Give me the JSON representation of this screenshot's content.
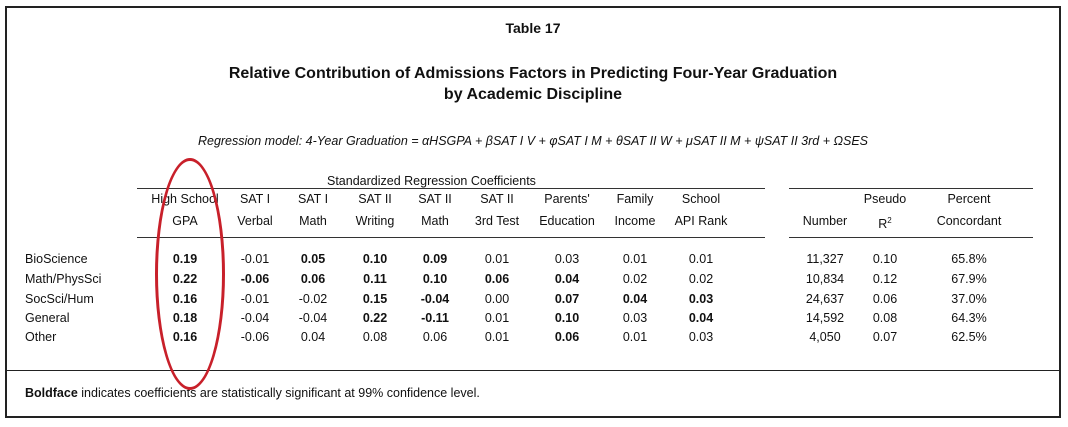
{
  "table_number": "Table 17",
  "title_line1": "Relative Contribution of Admissions Factors in Predicting Four-Year Graduation",
  "title_line2": "by Academic Discipline",
  "model": "Regression model:  4-Year Graduation = αHSGPA + βSAT I V + φSAT I M + θSAT II W + μSAT II M + ψSAT II 3rd + ΩSES",
  "coef_group_header": "Standardized Regression Coefficients",
  "columns": [
    {
      "l1": "High School",
      "l2": "GPA"
    },
    {
      "l1": "SAT I",
      "l2": "Verbal"
    },
    {
      "l1": "SAT I",
      "l2": "Math"
    },
    {
      "l1": "SAT II",
      "l2": "Writing"
    },
    {
      "l1": "SAT II",
      "l2": "Math"
    },
    {
      "l1": "SAT II",
      "l2": "3rd Test"
    },
    {
      "l1": "Parents'",
      "l2": "Education"
    },
    {
      "l1": "Family",
      "l2": "Income"
    },
    {
      "l1": "School",
      "l2": "API Rank"
    },
    {
      "l1": "",
      "l2": "Number"
    },
    {
      "l1": "Pseudo",
      "l2": "R",
      "sup": "2"
    },
    {
      "l1": "Percent",
      "l2": "Concordant"
    }
  ],
  "rows": [
    {
      "label": "BioScience",
      "values": [
        "0.19",
        "-0.01",
        "0.05",
        "0.10",
        "0.09",
        "0.01",
        "0.03",
        "0.01",
        "0.01",
        "11,327",
        "0.10",
        "65.8%"
      ],
      "bold": [
        true,
        false,
        true,
        true,
        true,
        false,
        false,
        false,
        false,
        false,
        false,
        false
      ]
    },
    {
      "label": "Math/PhysSci",
      "values": [
        "0.22",
        "-0.06",
        "0.06",
        "0.11",
        "0.10",
        "0.06",
        "0.04",
        "0.02",
        "0.02",
        "10,834",
        "0.12",
        "67.9%"
      ],
      "bold": [
        true,
        true,
        true,
        true,
        true,
        true,
        true,
        false,
        false,
        false,
        false,
        false
      ]
    },
    {
      "label": "SocSci/Hum",
      "values": [
        "0.16",
        "-0.01",
        "-0.02",
        "0.15",
        "-0.04",
        "0.00",
        "0.07",
        "0.04",
        "0.03",
        "24,637",
        "0.06",
        "37.0%"
      ],
      "bold": [
        true,
        false,
        false,
        true,
        true,
        false,
        true,
        true,
        true,
        false,
        false,
        false
      ]
    },
    {
      "label": "General",
      "values": [
        "0.18",
        "-0.04",
        "-0.04",
        "0.22",
        "-0.11",
        "0.01",
        "0.10",
        "0.03",
        "0.04",
        "14,592",
        "0.08",
        "64.3%"
      ],
      "bold": [
        true,
        false,
        false,
        true,
        true,
        false,
        true,
        false,
        true,
        false,
        false,
        false
      ]
    },
    {
      "label": "Other",
      "values": [
        "0.16",
        "-0.06",
        "0.04",
        "0.08",
        "0.06",
        "0.01",
        "0.06",
        "0.01",
        "0.03",
        "4,050",
        "0.07",
        "62.5%"
      ],
      "bold": [
        true,
        false,
        false,
        false,
        false,
        false,
        true,
        false,
        false,
        false,
        false,
        false
      ]
    }
  ],
  "footnote_bold": "Boldface",
  "footnote_rest": " indicates coefficients are statistically significant at 99% confidence level.",
  "colors": {
    "highlight_circle": "#c8202a"
  }
}
